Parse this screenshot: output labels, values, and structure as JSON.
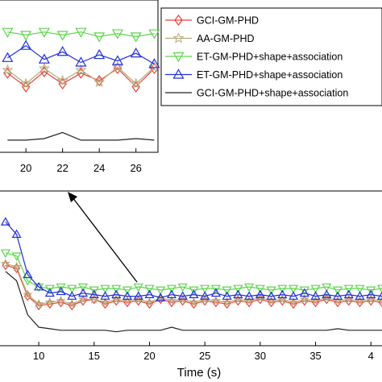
{
  "chart_data": [
    {
      "type": "line",
      "xlabel": "Time (s)",
      "xlim": [
        6.5,
        41
      ],
      "ylim": [
        0,
        1
      ],
      "xticks": [
        "10",
        "15",
        "20",
        "25",
        "30",
        "35",
        "4"
      ],
      "grid": false,
      "legend_position": "top-right",
      "series": [
        {
          "name": "GCI-GM-PHD",
          "color": "#e8403a",
          "marker": "diamond",
          "x": [
            7,
            8,
            9,
            10,
            11,
            12,
            13,
            14,
            15,
            16,
            17,
            18,
            19,
            20,
            21,
            22,
            23,
            24,
            25,
            26,
            27,
            28,
            29,
            30,
            31,
            32,
            33,
            34,
            35,
            36,
            37,
            38,
            39,
            40,
            41
          ],
          "values": [
            0.52,
            0.5,
            0.32,
            0.26,
            0.27,
            0.28,
            0.26,
            0.29,
            0.3,
            0.27,
            0.29,
            0.28,
            0.29,
            0.27,
            0.3,
            0.28,
            0.29,
            0.27,
            0.29,
            0.28,
            0.27,
            0.29,
            0.28,
            0.3,
            0.28,
            0.29,
            0.27,
            0.29,
            0.28,
            0.3,
            0.28,
            0.29,
            0.28,
            0.29,
            0.28
          ]
        },
        {
          "name": "AA-GM-PHD",
          "color": "#b5a878",
          "marker": "star",
          "x": [
            7,
            8,
            9,
            10,
            11,
            12,
            13,
            14,
            15,
            16,
            17,
            18,
            19,
            20,
            21,
            22,
            23,
            24,
            25,
            26,
            27,
            28,
            29,
            30,
            31,
            32,
            33,
            34,
            35,
            36,
            37,
            38,
            39,
            40,
            41
          ],
          "values": [
            0.53,
            0.51,
            0.33,
            0.27,
            0.28,
            0.29,
            0.27,
            0.3,
            0.3,
            0.28,
            0.3,
            0.29,
            0.3,
            0.28,
            0.31,
            0.29,
            0.3,
            0.28,
            0.3,
            0.29,
            0.28,
            0.3,
            0.29,
            0.31,
            0.29,
            0.3,
            0.28,
            0.3,
            0.29,
            0.31,
            0.29,
            0.3,
            0.29,
            0.3,
            0.29
          ]
        },
        {
          "name": "ET-GM-PHD+shape+association",
          "color": "#5cd64a",
          "marker": "triangle-down",
          "x": [
            7,
            8,
            9,
            10,
            11,
            12,
            13,
            14,
            15,
            16,
            17,
            18,
            19,
            20,
            21,
            22,
            23,
            24,
            25,
            26,
            27,
            28,
            29,
            30,
            31,
            32,
            33,
            34,
            35,
            36,
            37,
            38,
            39,
            40,
            41
          ],
          "values": [
            0.6,
            0.58,
            0.42,
            0.38,
            0.37,
            0.38,
            0.37,
            0.38,
            0.36,
            0.37,
            0.37,
            0.36,
            0.38,
            0.37,
            0.36,
            0.37,
            0.38,
            0.36,
            0.37,
            0.37,
            0.36,
            0.37,
            0.38,
            0.37,
            0.36,
            0.37,
            0.37,
            0.36,
            0.37,
            0.38,
            0.36,
            0.37,
            0.37,
            0.36,
            0.37
          ]
        },
        {
          "name": "ET-GM-PHD+shape+association",
          "color": "#2030d8",
          "marker": "triangle-up",
          "x": [
            7,
            8,
            9,
            10,
            11,
            12,
            13,
            14,
            15,
            16,
            17,
            18,
            19,
            20,
            21,
            22,
            23,
            24,
            25,
            26,
            27,
            28,
            29,
            30,
            31,
            32,
            33,
            34,
            35,
            36,
            37,
            38,
            39,
            40,
            41
          ],
          "values": [
            0.8,
            0.72,
            0.46,
            0.38,
            0.34,
            0.35,
            0.32,
            0.34,
            0.33,
            0.32,
            0.33,
            0.32,
            0.32,
            0.33,
            0.31,
            0.33,
            0.32,
            0.33,
            0.32,
            0.34,
            0.32,
            0.33,
            0.32,
            0.33,
            0.32,
            0.33,
            0.32,
            0.34,
            0.32,
            0.33,
            0.32,
            0.33,
            0.32,
            0.33,
            0.32
          ]
        },
        {
          "name": "GCI-GM-PHD+shape+association",
          "color": "#222222",
          "marker": "none",
          "x": [
            7,
            8,
            9,
            10,
            11,
            12,
            13,
            14,
            15,
            16,
            17,
            18,
            19,
            20,
            21,
            22,
            23,
            24,
            25,
            26,
            27,
            28,
            29,
            30,
            31,
            32,
            33,
            34,
            35,
            36,
            37,
            38,
            39,
            40,
            41
          ],
          "values": [
            0.48,
            0.42,
            0.2,
            0.12,
            0.11,
            0.1,
            0.1,
            0.1,
            0.1,
            0.1,
            0.09,
            0.1,
            0.1,
            0.1,
            0.1,
            0.12,
            0.1,
            0.1,
            0.1,
            0.1,
            0.1,
            0.1,
            0.1,
            0.1,
            0.1,
            0.1,
            0.1,
            0.1,
            0.1,
            0.1,
            0.11,
            0.1,
            0.1,
            0.1,
            0.1
          ]
        }
      ]
    },
    {
      "type": "line",
      "inset": true,
      "xlim": [
        18.5,
        27.2
      ],
      "ylim": [
        0,
        1
      ],
      "xticks": [
        "20",
        "22",
        "24",
        "26"
      ],
      "series": [
        {
          "name": "GCI-GM-PHD",
          "x": [
            19,
            20,
            21,
            22,
            23,
            24,
            25,
            26,
            27
          ],
          "values": [
            0.52,
            0.43,
            0.53,
            0.45,
            0.52,
            0.47,
            0.55,
            0.43,
            0.55
          ]
        },
        {
          "name": "AA-GM-PHD",
          "x": [
            19,
            20,
            21,
            22,
            23,
            24,
            25,
            26,
            27
          ],
          "values": [
            0.54,
            0.45,
            0.55,
            0.47,
            0.54,
            0.46,
            0.56,
            0.45,
            0.56
          ]
        },
        {
          "name": "ET-GM-PHD+shape+association",
          "x": [
            19,
            20,
            21,
            22,
            23,
            24,
            25,
            26,
            27
          ],
          "values": [
            0.79,
            0.77,
            0.79,
            0.77,
            0.79,
            0.76,
            0.78,
            0.76,
            0.78
          ]
        },
        {
          "name": "ET-GM-PHD+shape+association",
          "x": [
            19,
            20,
            21,
            22,
            23,
            24,
            25,
            26,
            27
          ],
          "values": [
            0.62,
            0.7,
            0.61,
            0.66,
            0.59,
            0.64,
            0.6,
            0.65,
            0.58
          ]
        },
        {
          "name": "GCI-GM-PHD+shape+association",
          "x": [
            19,
            20,
            21,
            22,
            23,
            24,
            25,
            26,
            27
          ],
          "values": [
            0.08,
            0.08,
            0.09,
            0.13,
            0.08,
            0.08,
            0.08,
            0.09,
            0.08
          ]
        }
      ]
    }
  ]
}
